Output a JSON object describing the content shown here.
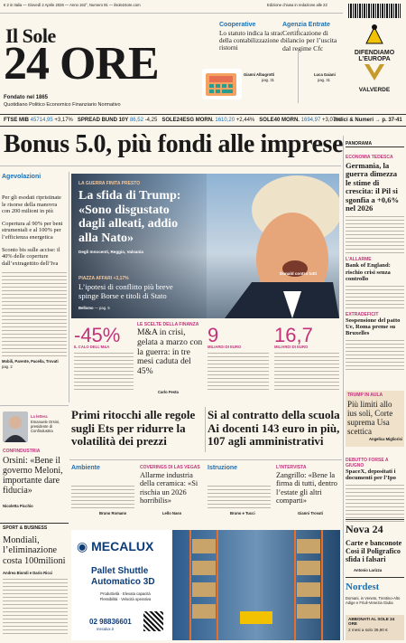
{
  "topbar": {
    "left": "€ 2 in Italia — Giovedì 2 Aprile 2026 — Anno 162°, Numero 91 — ilsole24ore.com",
    "right": "Edizione chiusa in redazione alle 22"
  },
  "masthead": {
    "line1": "Il Sole",
    "line2": "24 ORE",
    "founded": "Fondato nel 1865",
    "tagline": "Quotidiano Politico Economico Finanziario Normativo"
  },
  "box1": {
    "kicker": "Cooperative",
    "title": "Lo statuto indica la strada della contabilizzazione dei ristorni",
    "author": "Gianni Albugrotti",
    "page": "pag. 31"
  },
  "box2": {
    "kicker": "Agenzia Entrate",
    "title": "Certificazione di bilancio per l’uscita dal regime Cfc",
    "author": "Luca Gaiani",
    "page": "pag. 31"
  },
  "promo": {
    "line1": "DIFENDIAMO",
    "line2": "L’EUROPA",
    "line3": "VALVERDE"
  },
  "markets": {
    "items": [
      {
        "name": "FTSE MIB",
        "value": "45714,95",
        "change": "+3,17%"
      },
      {
        "name": "SPREAD BUND 10Y",
        "value": "86,52",
        "change": "-4,25"
      },
      {
        "name": "SOLE24ESG MORN.",
        "value": "1610,20",
        "change": "+2,44%"
      },
      {
        "name": "SOLE40 MORN.",
        "value": "1694,97",
        "change": "+3,07%"
      }
    ],
    "index": "Indici & Numeri → p. 37-41"
  },
  "headline": "Bonus 5.0, più fondi alle imprese",
  "left_col": {
    "kicker": "Agevolazioni",
    "lead": "Per gli esodati ripristinate le risorse della manovra con 200 milioni in più",
    "p2": "Copertura al 90% per beni strumentali e al 100% per l’efficienza energetica",
    "p3": "Sconto bis sulle accise: il 40% delle coperture dall’extragettito dell’Iva",
    "authors": "Mobili, Parente, Pacella, Trovati",
    "page": "pag. 2"
  },
  "trump": {
    "kicker": "LA GUERRA FINITA PRESTO",
    "title": "La sfida di Trump: «Sono disgustato dagli alleati, addio alla Nato»",
    "byline": "Degli Innocenti, Reggio, Valsania",
    "caption": "Donald contro tutti",
    "sub_kicker": "PIAZZA AFFARI +3,17%",
    "sub_title": "L’ipotesi di conflitto più breve spinge Borse e titoli di Stato",
    "sub_author": "Bellomo",
    "sub_page": "pag. 5"
  },
  "stats": {
    "kicker": "LE SCELTE DELLA FINANZA",
    "n1": "-45%",
    "l1": "IL CALO DELL’M&A",
    "n2": "9",
    "l2": "MILIARDI DI EURO",
    "n3": "16,7",
    "l3": "MILIARDI DI EURO",
    "headline": "M&A in crisi, gelata a marzo con la guerra: in tre mesi caduta del 45%",
    "author": "Carlo Festa",
    "page": "pag. 10"
  },
  "right": {
    "section": "PANORAMA",
    "k1": "ECONOMIA TEDESCA",
    "h1": "Germania, la guerra dimezza le stime di crescita: il Pil si sgonfia a +0,6% nel 2026",
    "k2": "L’ALLARME",
    "h2": "Bank of England: rischio crisi senza controllo",
    "k3": "EXTRADEFICIT",
    "h3": "Sospensione del patto Ue, Roma preme su Bruxelles",
    "k4": "TRUMP IN AULA",
    "h4": "Più limiti allo ius soli, Corte suprema Usa scettica",
    "a4": "Angelica Migliorisi",
    "k5": "DEBUTTO FORSE A GIUGNO",
    "h5": "SpaceX, depositati i documenti per l’Ipo",
    "h6": "Nova 24",
    "h7": "Carte e banconote Così il Poligrafico sfida i falsari",
    "a7": "Antonio Larizza",
    "h8": "Nordest",
    "t8": "Domani, in Veneto, Trentino-Alto Adige e Friuli-Venezia Giulia",
    "sub_title": "ABBONATI AL SOLE 24 ORE",
    "sub_price": "2 mesi a solo 39,90 €"
  },
  "interview": {
    "kicker": "La lettera",
    "name": "Emanuele Orsini, presidente di Confindustria",
    "section": "CONFINDUSTRIA",
    "title": "Orsini: «Bene il governo Meloni, importante dare fiducia»",
    "author": "Nicoletta Picchio"
  },
  "mid": {
    "h1": "Primi ritocchi alle regole sugli Ets per ridurre la volatilità dei prezzi",
    "h2": "Si al contratto della scuola Ai docenti 143 euro in più, 107 agli amministrativi"
  },
  "row3": {
    "k1": "Ambiente",
    "k2": "COVERINGS DI LAS VEGAS",
    "t2": "Allarme industria della ceramica: «Si rischia un 2026 horribilis»",
    "a2": "Lello Naso",
    "k3": "Istruzione",
    "k4": "L’INTERVISTA",
    "t4": "Zangrillo: «Bene la firma di tutti, dentro l’estate gli altri comparti»",
    "a4": "Gianni Trovati",
    "a1": "Bruno Romano",
    "a3": "Bruno e Tucci"
  },
  "sport": {
    "section": "SPORT & BUSINESS",
    "title": "Mondiali, l’eliminazione costa 100milioni",
    "authors": "Andrea Biondi e Dario Ricci"
  },
  "ad": {
    "brand": "MECALUX",
    "title1": "Pallet Shuttle",
    "title2": "Automatico 3D",
    "line": "Produttività · Elevata capacità",
    "line2": "Flessibilità · Velocità operativa",
    "phone": "02 98836601",
    "site": "mecalux.it"
  }
}
